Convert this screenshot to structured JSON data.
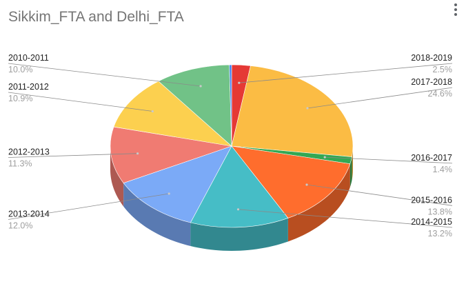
{
  "title": "Sikkim_FTA and Delhi_FTA",
  "menu_icon": "more-vert-icon",
  "chart_data": {
    "type": "pie",
    "title": "Sikkim_FTA and Delhi_FTA",
    "style": "3d",
    "slices": [
      {
        "label": "2018-2019",
        "value": 2.5,
        "display": "2.5%",
        "color": "#e53935"
      },
      {
        "label": "2017-2018",
        "value": 24.6,
        "display": "24.6%",
        "color": "#fbbc44"
      },
      {
        "label": "2016-2017",
        "value": 1.4,
        "display": "1.4%",
        "color": "#34a853"
      },
      {
        "label": "2015-2016",
        "value": 13.8,
        "display": "13.8%",
        "color": "#ff6d2d"
      },
      {
        "label": "2014-2015",
        "value": 13.2,
        "display": "13.2%",
        "color": "#46bdc6"
      },
      {
        "label": "2013-2014",
        "value": 12.0,
        "display": "12.0%",
        "color": "#7baaf7"
      },
      {
        "label": "2012-2013",
        "value": 11.3,
        "display": "11.3%",
        "color": "#f07b72"
      },
      {
        "label": "2011-2012",
        "value": 10.9,
        "display": "10.9%",
        "color": "#fcd04f"
      },
      {
        "label": "2010-2011",
        "value": 10.0,
        "display": "10.0%",
        "color": "#71c287"
      },
      {
        "label": "",
        "value": 0.3,
        "display": "",
        "color": "#4285f4"
      }
    ],
    "legend": "labels-beside-slices"
  }
}
